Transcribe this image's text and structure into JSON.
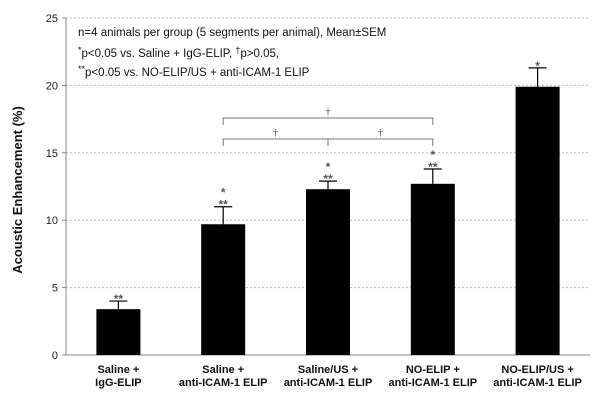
{
  "chart_data": {
    "type": "bar",
    "ylabel": "Acoustic Enhancement (%)",
    "ylim": [
      0,
      25
    ],
    "yticks": [
      "0",
      "5",
      "10",
      "15",
      "20",
      "25"
    ],
    "grid": true,
    "categories": [
      [
        "Saline +",
        "IgG-ELIP"
      ],
      [
        "Saline +",
        "anti-ICAM-1 ELIP"
      ],
      [
        "Saline/US +",
        "anti-ICAM-1 ELIP"
      ],
      [
        "NO-ELIP +",
        "anti-ICAM-1 ELIP"
      ],
      [
        "NO-ELIP/US +",
        "anti-ICAM-1 ELIP"
      ]
    ],
    "values": [
      3.4,
      9.7,
      12.3,
      12.7,
      19.9
    ],
    "errors": [
      0.6,
      1.3,
      0.6,
      1.1,
      1.4
    ],
    "bar_color": "#000000",
    "significance": [
      [
        "**"
      ],
      [
        "*",
        "**"
      ],
      [
        "*",
        "**"
      ],
      [
        "*",
        "**"
      ],
      [
        "*"
      ]
    ],
    "comparison_brackets": [
      {
        "from": 1,
        "to": 2,
        "symbol": "†"
      },
      {
        "from": 2,
        "to": 3,
        "symbol": "†"
      },
      {
        "from": 1,
        "to": 3,
        "symbol": "†"
      }
    ],
    "annotations": {
      "line1": "n=4 animals per group (5 segments per animal),  Mean±SEM",
      "line2_mark": "*",
      "line2_text": "p<0.05 vs. Saline + IgG-ELIP,  ",
      "line2_mark2": "†",
      "line2_text2": "p>0.05,",
      "line3_mark": "**",
      "line3_text": "p<0.05 vs. NO-ELIP/US + anti-ICAM-1 ELIP"
    }
  }
}
